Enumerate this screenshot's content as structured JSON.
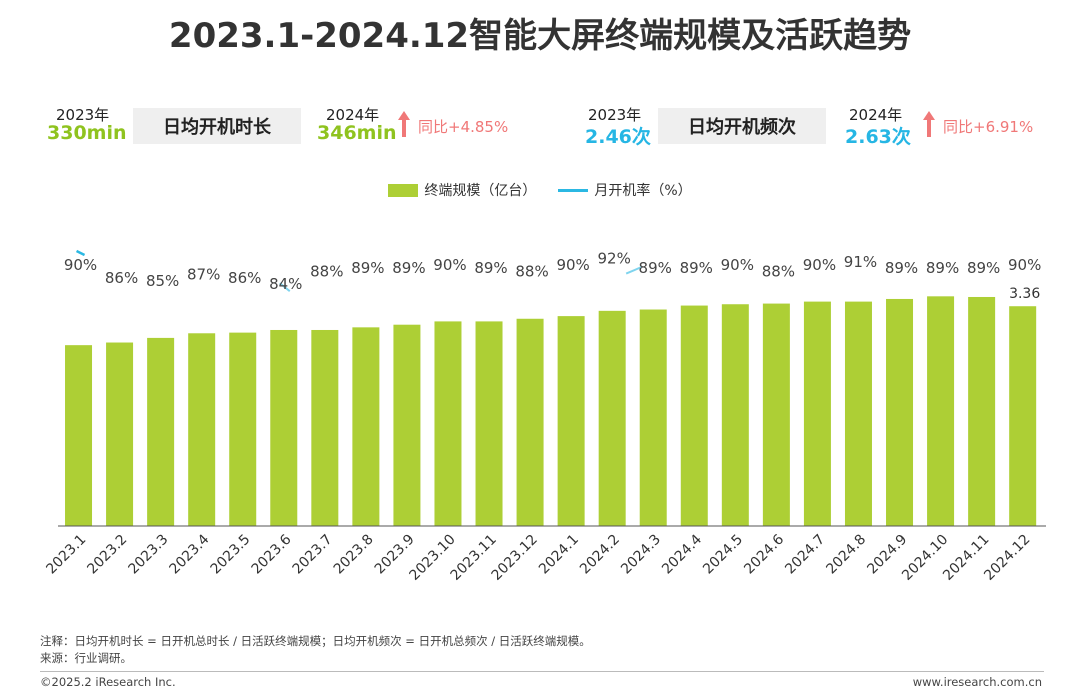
{
  "title": "2023.1-2024.12智能大屏终端规模及活跃趋势",
  "kpis": {
    "duration": {
      "year_a": "2023年",
      "value_a": "330min",
      "label": "日均开机时长",
      "year_b": "2024年",
      "value_b": "346min",
      "yoy": "同比+4.85%"
    },
    "frequency": {
      "year_a": "2023年",
      "value_a": "2.46次",
      "label": "日均开机频次",
      "year_b": "2024年",
      "value_b": "2.63次",
      "yoy": "同比+6.91%"
    }
  },
  "colors": {
    "bar": "#adcf35",
    "line": "#2bb8e3",
    "green_text": "#8fc31f",
    "cyan_text": "#26b6e4",
    "up_arrow": "#f07878"
  },
  "chart_data": {
    "type": "bar",
    "categories": [
      "2023.1",
      "2023.2",
      "2023.3",
      "2023.4",
      "2023.5",
      "2023.6",
      "2023.7",
      "2023.8",
      "2023.9",
      "2023.10",
      "2023.11",
      "2023.12",
      "2024.1",
      "2024.2",
      "2024.3",
      "2024.4",
      "2024.5",
      "2024.6",
      "2024.7",
      "2024.8",
      "2024.9",
      "2024.10",
      "2024.11",
      "2024.12"
    ],
    "series": [
      {
        "name": "终端规模（亿台）",
        "type": "bar",
        "values": [
          2.77,
          2.81,
          2.88,
          2.95,
          2.96,
          3.0,
          3.0,
          3.04,
          3.08,
          3.13,
          3.13,
          3.17,
          3.21,
          3.29,
          3.31,
          3.37,
          3.39,
          3.4,
          3.43,
          3.43,
          3.47,
          3.51,
          3.5,
          3.36
        ],
        "data_labels": [
          "",
          "",
          "",
          "",
          "",
          "",
          "",
          "",
          "",
          "",
          "",
          "",
          "",
          "",
          "",
          "",
          "",
          "",
          "",
          "",
          "",
          "",
          "",
          "3.36"
        ]
      },
      {
        "name": "月开机率（%）",
        "type": "line",
        "values": [
          90,
          86,
          85,
          87,
          86,
          84,
          88,
          89,
          89,
          90,
          89,
          88,
          90,
          92,
          89,
          89,
          90,
          88,
          90,
          91,
          89,
          89,
          89,
          90
        ],
        "data_labels": [
          "90%",
          "86%",
          "85%",
          "87%",
          "86%",
          "84%",
          "88%",
          "89%",
          "89%",
          "90%",
          "89%",
          "88%",
          "90%",
          "92%",
          "89%",
          "89%",
          "90%",
          "88%",
          "90%",
          "91%",
          "89%",
          "89%",
          "89%",
          "90%"
        ]
      }
    ],
    "legend_position": "top"
  },
  "notes": {
    "note": "注释：日均开机时长 = 日开机总时长 / 日活跃终端规模；日均开机频次 = 日开机总频次 / 日活跃终端规模。",
    "source": "来源：行业调研。"
  },
  "footer": {
    "copyright": "©2025.2 iResearch Inc.",
    "website": "www.iresearch.com.cn"
  }
}
